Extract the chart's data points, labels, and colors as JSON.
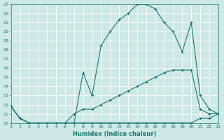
{
  "xlabel": "Humidex (Indice chaleur)",
  "ylabel": "",
  "bg_color": "#cde8e5",
  "grid_color": "#b0d8d4",
  "line_color": "#1a7a6e",
  "xlim": [
    0,
    23
  ],
  "ylim": [
    10,
    23
  ],
  "xticks": [
    0,
    1,
    2,
    3,
    4,
    5,
    6,
    7,
    8,
    9,
    10,
    11,
    12,
    13,
    14,
    15,
    16,
    17,
    18,
    19,
    20,
    21,
    22,
    23
  ],
  "yticks": [
    10,
    11,
    12,
    13,
    14,
    15,
    16,
    17,
    18,
    19,
    20,
    21,
    22,
    23
  ],
  "line1_x": [
    0,
    1,
    2,
    3,
    4,
    5,
    6,
    7,
    8,
    9,
    10,
    11,
    12,
    13,
    14,
    15,
    16,
    17,
    18,
    19,
    20,
    21,
    22,
    23
  ],
  "line1_y": [
    11.8,
    10.5,
    10.0,
    10.0,
    10.0,
    10.0,
    10.0,
    10.0,
    10.0,
    10.0,
    10.0,
    10.0,
    10.0,
    10.0,
    10.0,
    10.0,
    10.0,
    10.0,
    10.0,
    10.0,
    10.0,
    10.5,
    10.5,
    11.0
  ],
  "line2_x": [
    0,
    1,
    2,
    3,
    4,
    5,
    6,
    7,
    8,
    9,
    10,
    11,
    12,
    13,
    14,
    15,
    16,
    17,
    18,
    19,
    20,
    21,
    22,
    23
  ],
  "line2_y": [
    11.8,
    10.5,
    10.0,
    10.0,
    10.0,
    10.0,
    10.0,
    11.0,
    11.5,
    11.5,
    12.0,
    12.5,
    13.0,
    13.5,
    14.0,
    14.5,
    15.0,
    15.5,
    15.8,
    15.8,
    15.8,
    11.5,
    11.0,
    11.0
  ],
  "line3_x": [
    0,
    1,
    2,
    3,
    4,
    5,
    6,
    7,
    8,
    9,
    10,
    11,
    12,
    13,
    14,
    15,
    16,
    17,
    18,
    19,
    20,
    21,
    22,
    23
  ],
  "line3_y": [
    11.8,
    10.5,
    10.0,
    10.0,
    10.0,
    10.0,
    10.0,
    10.0,
    15.5,
    13.0,
    18.5,
    20.0,
    21.3,
    22.0,
    23.0,
    23.0,
    22.5,
    21.0,
    20.0,
    17.8,
    21.0,
    13.0,
    11.5,
    11.0
  ]
}
